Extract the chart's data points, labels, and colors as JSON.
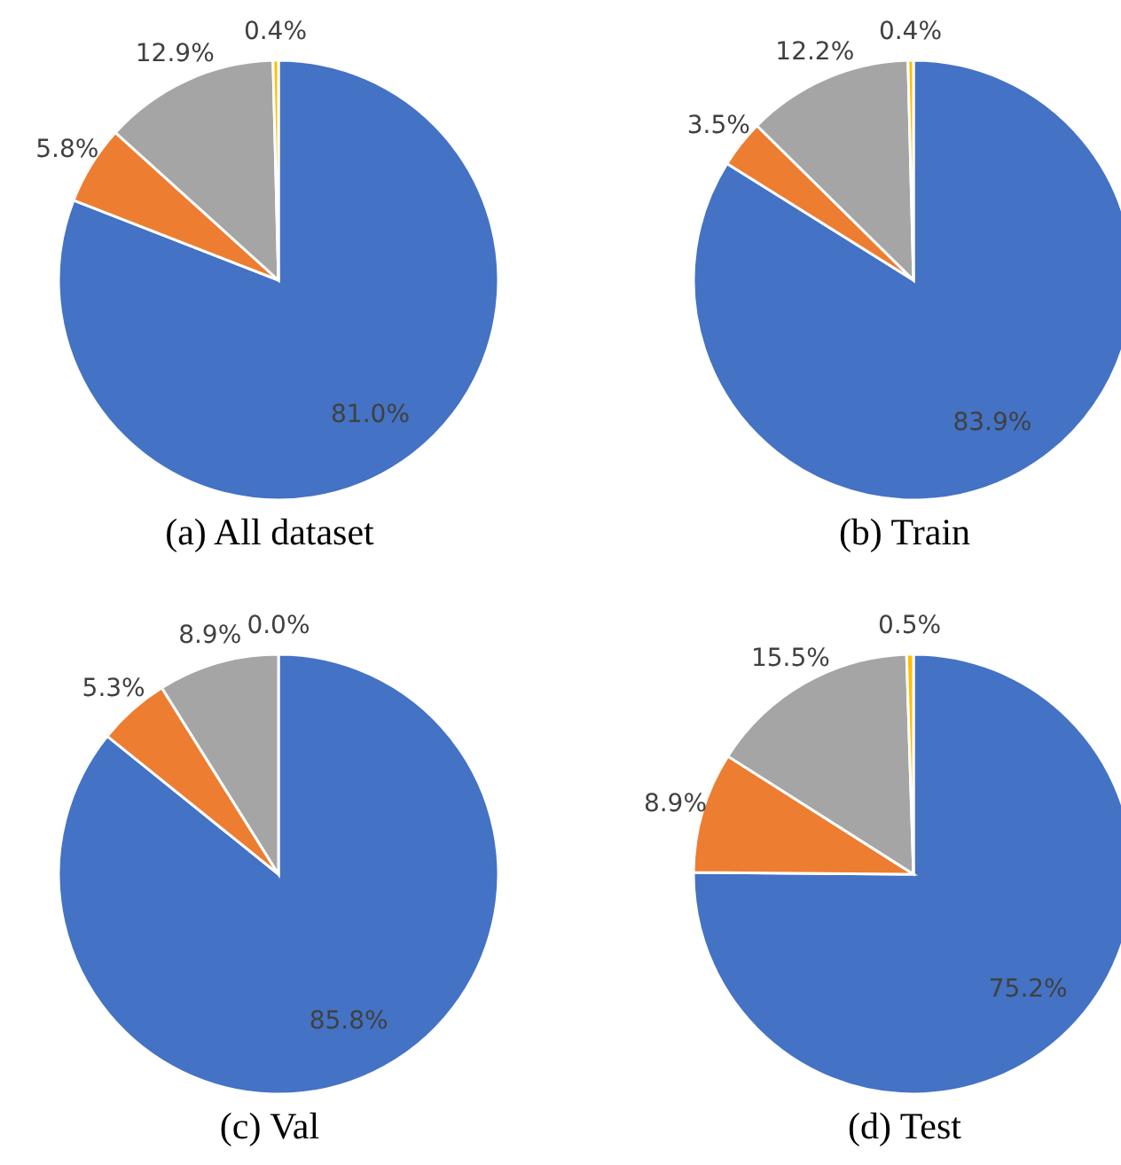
{
  "chart_data": [
    {
      "type": "pie",
      "title": "(a) All dataset",
      "categories": [
        null,
        null,
        null,
        null
      ],
      "values": [
        81.0,
        5.8,
        12.9,
        0.4
      ],
      "colors": [
        "#4472c4",
        "#ed7d31",
        "#a5a5a5",
        "#ffc000"
      ],
      "value_labels": [
        "81.0%",
        "5.8%",
        "12.9%",
        "0.4%"
      ]
    },
    {
      "type": "pie",
      "title": "(b) Train",
      "categories": [
        null,
        null,
        null,
        null
      ],
      "values": [
        83.9,
        3.5,
        12.2,
        0.4
      ],
      "colors": [
        "#4472c4",
        "#ed7d31",
        "#a5a5a5",
        "#ffc000"
      ],
      "value_labels": [
        "83.9%",
        "3.5%",
        "12.2%",
        "0.4%"
      ]
    },
    {
      "type": "pie",
      "title": "(c) Val",
      "categories": [
        null,
        null,
        null,
        null
      ],
      "values": [
        85.8,
        5.3,
        8.9,
        0.0
      ],
      "colors": [
        "#4472c4",
        "#ed7d31",
        "#a5a5a5",
        "#ffc000"
      ],
      "value_labels": [
        "85.8%",
        "5.3%",
        "8.9%",
        "0.0%"
      ]
    },
    {
      "type": "pie",
      "title": "(d) Test",
      "categories": [
        null,
        null,
        null,
        null
      ],
      "values": [
        75.2,
        8.9,
        15.5,
        0.5
      ],
      "colors": [
        "#4472c4",
        "#ed7d31",
        "#a5a5a5",
        "#ffc000"
      ],
      "value_labels": [
        "75.2%",
        "8.9%",
        "15.5%",
        "0.5%"
      ]
    }
  ]
}
